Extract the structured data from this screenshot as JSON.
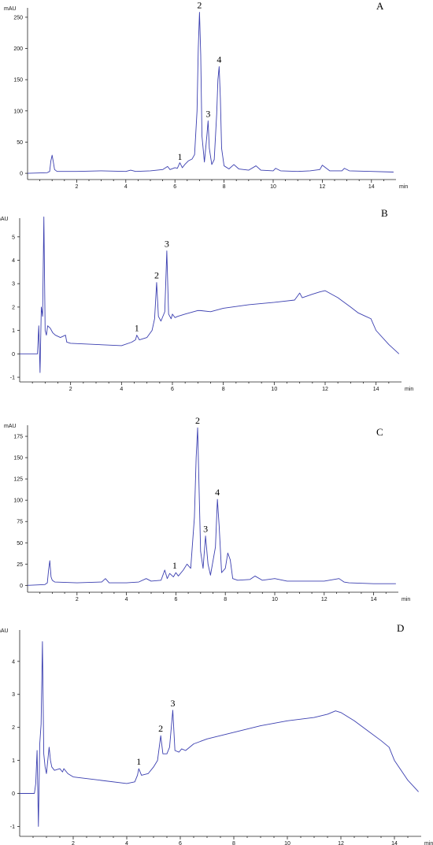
{
  "chart_data": [
    {
      "type": "line",
      "panel_label": "A",
      "ylabel": "mAU",
      "xunit": "min",
      "xlim": [
        0,
        15
      ],
      "ylim": [
        -10,
        265
      ],
      "yticks": [
        0,
        50,
        100,
        150,
        200,
        250
      ],
      "xticks": [
        2,
        4,
        6,
        8,
        10,
        12,
        14
      ],
      "peak_labels": [
        {
          "text": "1",
          "x": 6.2,
          "y": 15
        },
        {
          "text": "2",
          "x": 7.0,
          "y": 258
        },
        {
          "text": "3",
          "x": 7.35,
          "y": 84
        },
        {
          "text": "4",
          "x": 7.8,
          "y": 171
        }
      ],
      "series": [
        {
          "x": [
            0.0,
            0.8,
            0.9,
            0.95,
            1.0,
            1.05,
            1.1,
            1.2,
            2.0,
            3.0,
            4.0,
            4.2,
            4.4,
            5.0,
            5.5,
            5.7,
            5.8,
            6.0,
            6.1,
            6.2,
            6.3,
            6.4,
            6.55,
            6.7,
            6.8,
            6.9,
            6.95,
            7.0,
            7.05,
            7.1,
            7.2,
            7.3,
            7.35,
            7.4,
            7.5,
            7.6,
            7.7,
            7.75,
            7.8,
            7.85,
            7.9,
            8.0,
            8.2,
            8.4,
            8.6,
            9.0,
            9.3,
            9.5,
            10.0,
            10.1,
            10.3,
            11.0,
            11.5,
            11.9,
            12.0,
            12.1,
            12.3,
            12.8,
            12.9,
            13.1,
            14.0,
            14.9
          ],
          "y": [
            0,
            1,
            3,
            20,
            29,
            18,
            6,
            3,
            3,
            4,
            3,
            5,
            3,
            4,
            6,
            11,
            6,
            9,
            8,
            17,
            9,
            14,
            20,
            23,
            30,
            100,
            200,
            258,
            190,
            60,
            18,
            60,
            84,
            40,
            14,
            22,
            95,
            150,
            171,
            120,
            40,
            12,
            7,
            14,
            7,
            5,
            12,
            5,
            4,
            8,
            4,
            3,
            4,
            6,
            13,
            10,
            4,
            4,
            8,
            4,
            3,
            2
          ]
        }
      ]
    },
    {
      "type": "line",
      "panel_label": "B",
      "ylabel": "mAU",
      "xunit": "min",
      "xlim": [
        0,
        15
      ],
      "ylim": [
        -1.2,
        5.8
      ],
      "yticks": [
        -1,
        0,
        1,
        2,
        3,
        4,
        5
      ],
      "xticks": [
        2,
        4,
        6,
        8,
        10,
        12,
        14
      ],
      "peak_labels": [
        {
          "text": "1",
          "x": 4.6,
          "y": 0.8
        },
        {
          "text": "2",
          "x": 5.38,
          "y": 3.05
        },
        {
          "text": "3",
          "x": 5.78,
          "y": 4.4
        }
      ],
      "series": [
        {
          "x": [
            0.0,
            0.6,
            0.7,
            0.75,
            0.8,
            0.85,
            0.9,
            0.95,
            1.0,
            1.05,
            1.1,
            1.2,
            1.3,
            1.4,
            1.6,
            1.8,
            1.85,
            2.0,
            3.0,
            4.0,
            4.4,
            4.55,
            4.6,
            4.7,
            5.0,
            5.2,
            5.3,
            5.38,
            5.45,
            5.55,
            5.7,
            5.78,
            5.85,
            5.95,
            6.0,
            6.1,
            6.2,
            6.5,
            7.0,
            7.1,
            7.5,
            8.0,
            9.0,
            10.0,
            10.8,
            11.0,
            11.1,
            11.5,
            11.8,
            12.0,
            12.5,
            13.0,
            13.3,
            13.6,
            13.8,
            14.0,
            14.5,
            14.9
          ],
          "y": [
            0,
            0,
            0,
            1.2,
            -0.8,
            2.0,
            1.6,
            5.85,
            1.0,
            0.8,
            1.2,
            1.1,
            0.9,
            0.8,
            0.7,
            0.8,
            0.5,
            0.45,
            0.4,
            0.35,
            0.5,
            0.6,
            0.8,
            0.6,
            0.7,
            1.0,
            1.5,
            3.05,
            1.6,
            1.4,
            1.8,
            4.4,
            1.7,
            1.5,
            1.7,
            1.55,
            1.6,
            1.7,
            1.85,
            1.85,
            1.8,
            1.95,
            2.1,
            2.2,
            2.3,
            2.6,
            2.4,
            2.55,
            2.65,
            2.7,
            2.4,
            2.0,
            1.75,
            1.6,
            1.5,
            1.0,
            0.4,
            0
          ]
        }
      ]
    },
    {
      "type": "line",
      "panel_label": "C",
      "ylabel": "mAU",
      "xunit": "min",
      "xlim": [
        0,
        15
      ],
      "ylim": [
        -8,
        188
      ],
      "yticks": [
        0,
        25,
        50,
        75,
        100,
        125,
        150,
        175
      ],
      "xticks": [
        2,
        4,
        6,
        8,
        10,
        12,
        14
      ],
      "peak_labels": [
        {
          "text": "1",
          "x": 5.95,
          "y": 15
        },
        {
          "text": "2",
          "x": 6.88,
          "y": 185
        },
        {
          "text": "3",
          "x": 7.2,
          "y": 58
        },
        {
          "text": "4",
          "x": 7.68,
          "y": 101
        }
      ],
      "series": [
        {
          "x": [
            0.0,
            0.7,
            0.8,
            0.85,
            0.9,
            0.95,
            1.0,
            1.1,
            2.0,
            3.0,
            3.15,
            3.3,
            4.0,
            4.5,
            4.8,
            5.0,
            5.4,
            5.55,
            5.65,
            5.75,
            5.9,
            6.0,
            6.1,
            6.3,
            6.45,
            6.6,
            6.75,
            6.82,
            6.88,
            6.95,
            7.0,
            7.1,
            7.2,
            7.3,
            7.4,
            7.6,
            7.68,
            7.75,
            7.85,
            8.0,
            8.1,
            8.2,
            8.3,
            8.5,
            9.0,
            9.2,
            9.5,
            10.0,
            10.5,
            11.0,
            12.0,
            12.6,
            12.8,
            13.0,
            14.0,
            14.9
          ],
          "y": [
            0,
            1,
            3,
            18,
            29,
            10,
            6,
            4,
            3,
            4,
            8,
            3,
            3,
            4,
            8,
            5,
            6,
            18,
            8,
            14,
            10,
            15,
            11,
            18,
            25,
            20,
            80,
            150,
            185,
            100,
            40,
            20,
            58,
            25,
            12,
            45,
            101,
            70,
            15,
            20,
            38,
            30,
            8,
            6,
            7,
            11,
            6,
            8,
            5,
            5,
            5,
            8,
            4,
            3,
            2,
            2
          ]
        }
      ]
    },
    {
      "type": "line",
      "panel_label": "D",
      "ylabel": "mAU",
      "xunit": "min",
      "xlim": [
        0,
        15
      ],
      "ylim": [
        -1.3,
        4.95
      ],
      "yticks": [
        -1,
        0,
        1,
        2,
        3,
        4
      ],
      "xticks": [
        2,
        4,
        6,
        8,
        10,
        12,
        14
      ],
      "peak_labels": [
        {
          "text": "1",
          "x": 4.45,
          "y": 0.75
        },
        {
          "text": "2",
          "x": 5.27,
          "y": 1.75
        },
        {
          "text": "3",
          "x": 5.72,
          "y": 2.52
        }
      ],
      "series": [
        {
          "x": [
            0.0,
            0.55,
            0.6,
            0.65,
            0.7,
            0.75,
            0.8,
            0.85,
            0.9,
            0.95,
            1.0,
            1.1,
            1.15,
            1.2,
            1.3,
            1.5,
            1.6,
            1.65,
            1.8,
            2.0,
            3.0,
            4.0,
            4.3,
            4.4,
            4.45,
            4.55,
            4.8,
            5.0,
            5.15,
            5.27,
            5.35,
            5.5,
            5.6,
            5.72,
            5.8,
            5.95,
            6.05,
            6.2,
            6.5,
            7.0,
            8.0,
            9.0,
            10.0,
            11.0,
            11.5,
            11.8,
            12.0,
            12.5,
            13.0,
            13.5,
            13.8,
            14.0,
            14.5,
            14.9
          ],
          "y": [
            0,
            0,
            0.3,
            1.3,
            -1.0,
            1.5,
            2.1,
            4.6,
            1.2,
            0.8,
            0.6,
            1.4,
            1.0,
            0.8,
            0.7,
            0.75,
            0.65,
            0.75,
            0.6,
            0.5,
            0.4,
            0.3,
            0.35,
            0.55,
            0.75,
            0.55,
            0.6,
            0.8,
            1.0,
            1.75,
            1.2,
            1.2,
            1.4,
            2.52,
            1.3,
            1.25,
            1.35,
            1.3,
            1.5,
            1.65,
            1.85,
            2.05,
            2.2,
            2.3,
            2.4,
            2.5,
            2.45,
            2.2,
            1.9,
            1.6,
            1.4,
            1.0,
            0.4,
            0.05
          ]
        }
      ]
    }
  ]
}
